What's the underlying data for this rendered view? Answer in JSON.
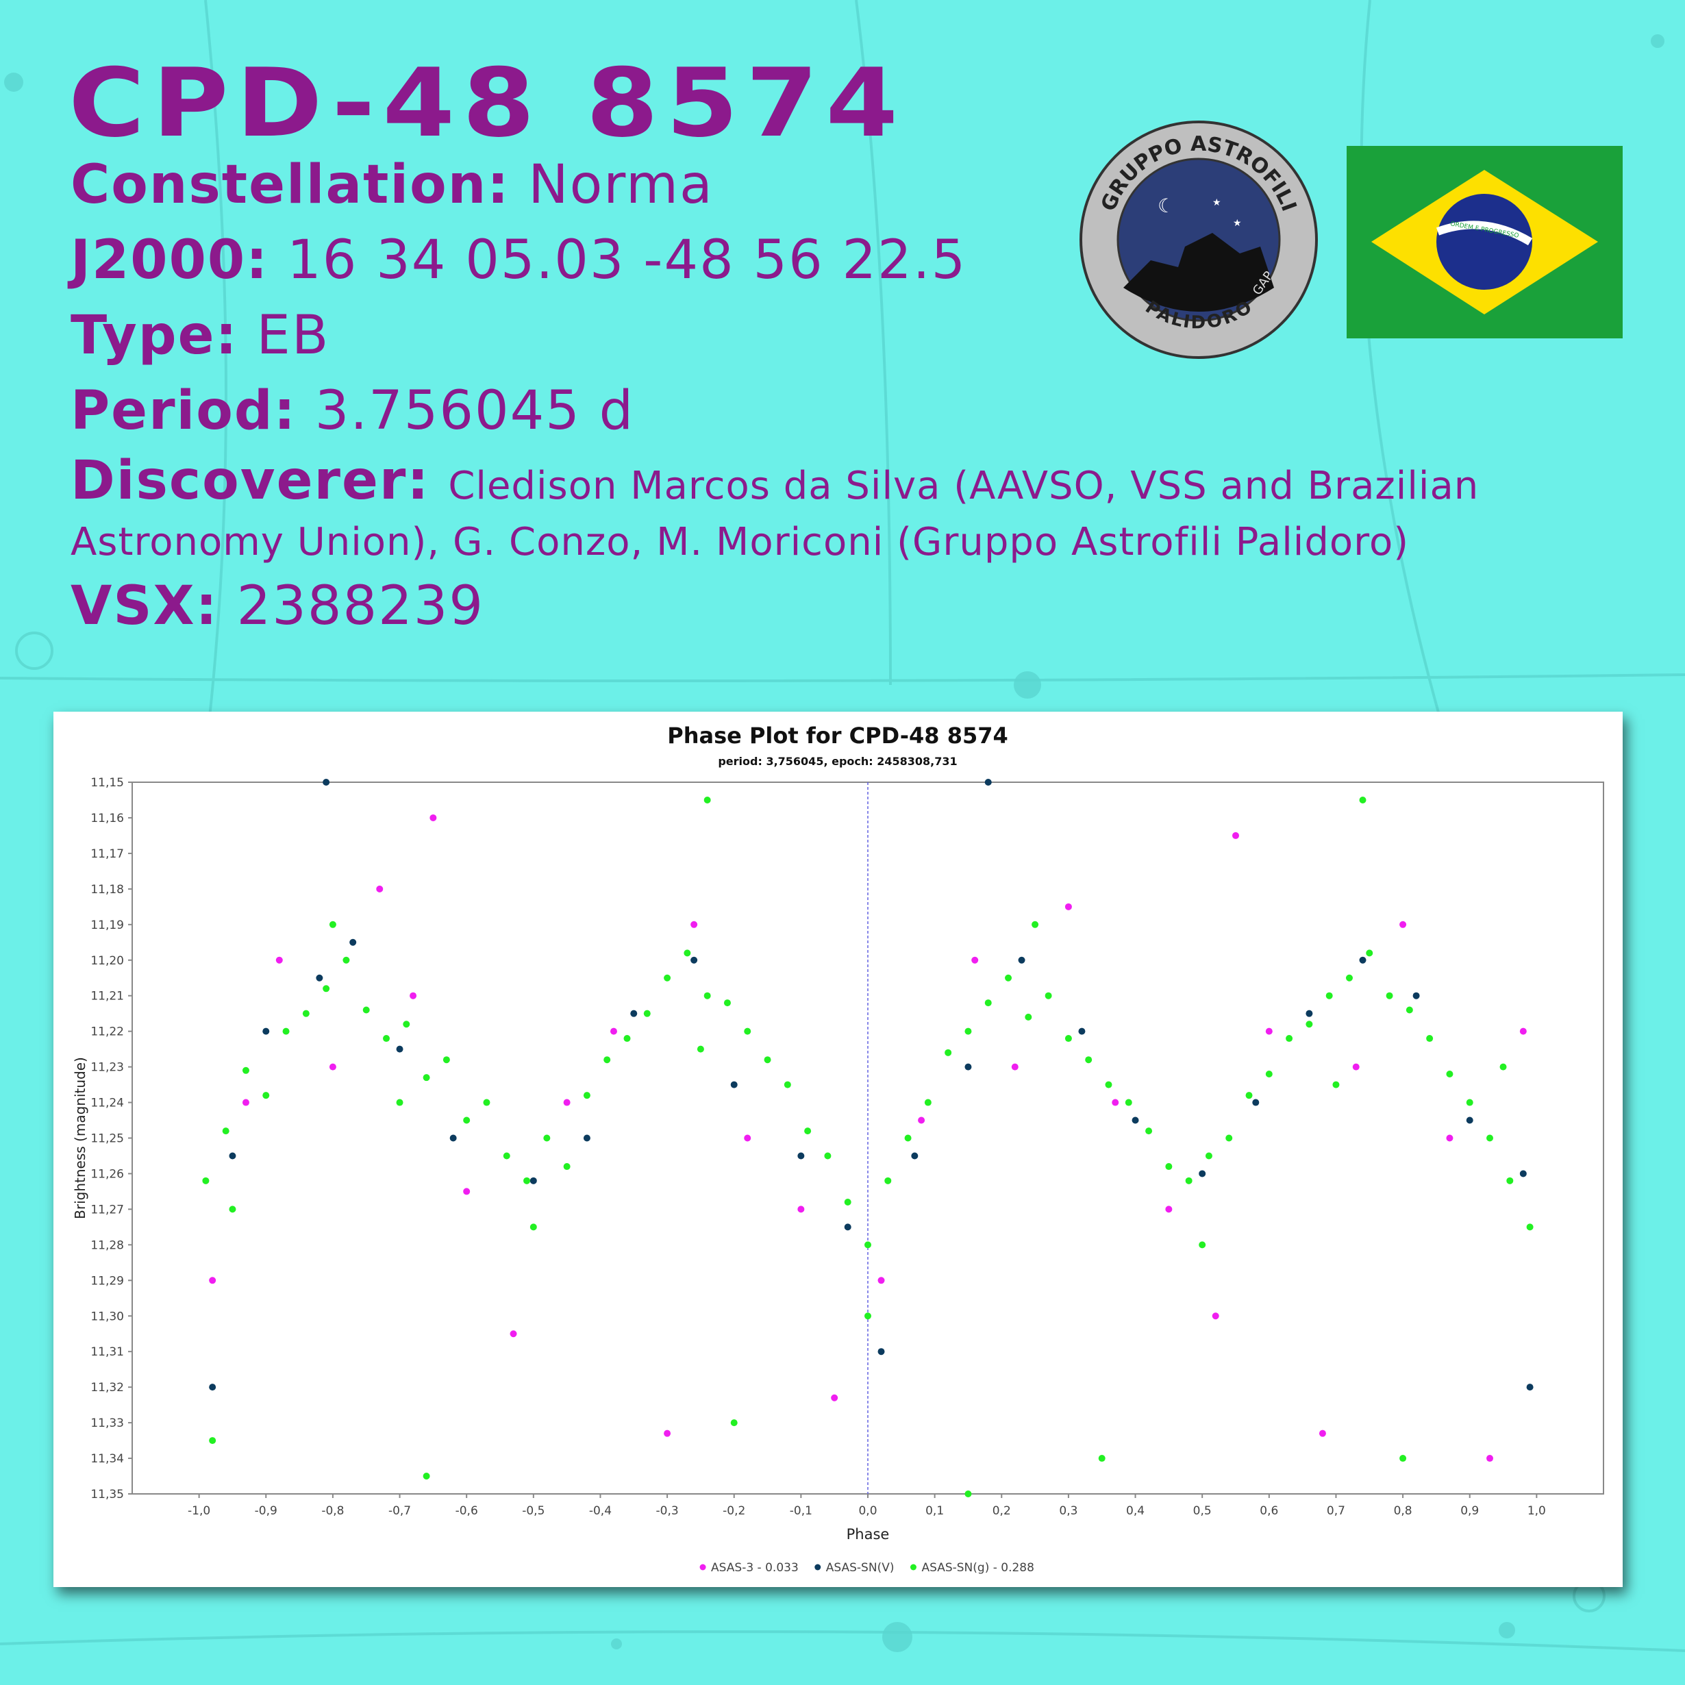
{
  "header": {
    "title": "CPD-48 8574",
    "fields": [
      {
        "label": "Constellation:",
        "value": "Norma"
      },
      {
        "label": "J2000:",
        "value": "16 34 05.03 -48 56 22.5"
      },
      {
        "label": "Type:",
        "value": "EB"
      },
      {
        "label": "Period:",
        "value": "3.756045 d"
      },
      {
        "label": "Discoverer:",
        "value": "Cledison Marcos da Silva (AAVSO, VSS and Brazilian Astronomy Union), G. Conzo, M. Moriconi (Gruppo Astrofili Palidoro)"
      },
      {
        "label": "VSX:",
        "value": "2388239"
      }
    ]
  },
  "logo": {
    "top_text": "GRUPPO ASTROFILI",
    "bottom_text": "PALIDORO",
    "side_text": "GAP"
  },
  "flag": {
    "motto": "ORDEM E PROGRESSO"
  },
  "chart_data": {
    "type": "scatter",
    "title": "Phase Plot for CPD-48 8574",
    "subtitle": "period: 3,756045, epoch: 2458308,731",
    "x_label": "Phase",
    "y_label": "Brightness (magnitude)",
    "xlim": [
      -1.1,
      1.1
    ],
    "ylim": [
      11.15,
      11.35
    ],
    "y_inverted": true,
    "grid": false,
    "legend": "bottom",
    "domain_marker": 0,
    "xticks": [
      {
        "value": -1.0,
        "label": "-1,0"
      },
      {
        "value": -0.9,
        "label": "-0,9"
      },
      {
        "value": -0.8,
        "label": "-0,8"
      },
      {
        "value": -0.7,
        "label": "-0,7"
      },
      {
        "value": -0.6,
        "label": "-0,6"
      },
      {
        "value": -0.5,
        "label": "-0,5"
      },
      {
        "value": -0.4,
        "label": "-0,4"
      },
      {
        "value": -0.3,
        "label": "-0,3"
      },
      {
        "value": -0.2,
        "label": "-0,2"
      },
      {
        "value": -0.1,
        "label": "-0,1"
      },
      {
        "value": 0.0,
        "label": "0,0"
      },
      {
        "value": 0.1,
        "label": "0,1"
      },
      {
        "value": 0.2,
        "label": "0,2"
      },
      {
        "value": 0.3,
        "label": "0,3"
      },
      {
        "value": 0.4,
        "label": "0,4"
      },
      {
        "value": 0.5,
        "label": "0,5"
      },
      {
        "value": 0.6,
        "label": "0,6"
      },
      {
        "value": 0.7,
        "label": "0,7"
      },
      {
        "value": 0.8,
        "label": "0,8"
      },
      {
        "value": 0.9,
        "label": "0,9"
      },
      {
        "value": 1.0,
        "label": "1,0"
      }
    ],
    "yticks": [
      {
        "value": 11.15,
        "label": "11,15"
      },
      {
        "value": 11.16,
        "label": "11,16"
      },
      {
        "value": 11.17,
        "label": "11,17"
      },
      {
        "value": 11.18,
        "label": "11,18"
      },
      {
        "value": 11.19,
        "label": "11,19"
      },
      {
        "value": 11.2,
        "label": "11,20"
      },
      {
        "value": 11.21,
        "label": "11,21"
      },
      {
        "value": 11.22,
        "label": "11,22"
      },
      {
        "value": 11.23,
        "label": "11,23"
      },
      {
        "value": 11.24,
        "label": "11,24"
      },
      {
        "value": 11.25,
        "label": "11,25"
      },
      {
        "value": 11.26,
        "label": "11,26"
      },
      {
        "value": 11.27,
        "label": "11,27"
      },
      {
        "value": 11.28,
        "label": "11,28"
      },
      {
        "value": 11.29,
        "label": "11,29"
      },
      {
        "value": 11.3,
        "label": "11,30"
      },
      {
        "value": 11.31,
        "label": "11,31"
      },
      {
        "value": 11.32,
        "label": "11,32"
      },
      {
        "value": 11.33,
        "label": "11,33"
      },
      {
        "value": 11.34,
        "label": "11,34"
      },
      {
        "value": 11.35,
        "label": "11,35"
      }
    ],
    "series": [
      {
        "name": "ASAS-3 - 0.033",
        "color": "#f01ef0",
        "x": [
          -0.98,
          -0.93,
          -0.88,
          -0.8,
          -0.73,
          -0.68,
          -0.6,
          -0.53,
          -0.45,
          -0.38,
          -0.3,
          -0.26,
          -0.18,
          -0.1,
          -0.05,
          0.02,
          0.08,
          0.16,
          0.22,
          0.3,
          0.37,
          0.45,
          0.52,
          0.6,
          0.68,
          0.73,
          0.8,
          0.87,
          0.93,
          0.98,
          -0.65,
          0.55
        ],
        "values": [
          11.29,
          11.24,
          11.2,
          11.23,
          11.18,
          11.21,
          11.265,
          11.305,
          11.24,
          11.22,
          11.333,
          11.19,
          11.25,
          11.27,
          11.323,
          11.29,
          11.245,
          11.2,
          11.23,
          11.185,
          11.24,
          11.27,
          11.3,
          11.22,
          11.333,
          11.23,
          11.19,
          11.25,
          11.34,
          11.22,
          11.16,
          11.165
        ]
      },
      {
        "name": "ASAS-SN(V)",
        "color": "#0c3b5e",
        "x": [
          -0.98,
          -0.95,
          -0.9,
          -0.82,
          -0.77,
          -0.7,
          -0.62,
          -0.5,
          -0.42,
          -0.35,
          -0.26,
          -0.2,
          -0.1,
          -0.03,
          0.02,
          0.07,
          0.15,
          0.23,
          0.32,
          0.4,
          0.5,
          0.58,
          0.66,
          0.74,
          0.82,
          0.9,
          0.98,
          0.99,
          -0.81,
          0.18
        ],
        "values": [
          11.32,
          11.255,
          11.22,
          11.205,
          11.195,
          11.225,
          11.25,
          11.262,
          11.25,
          11.215,
          11.2,
          11.235,
          11.255,
          11.275,
          11.31,
          11.255,
          11.23,
          11.2,
          11.22,
          11.245,
          11.26,
          11.24,
          11.215,
          11.2,
          11.21,
          11.245,
          11.26,
          11.32,
          11.15,
          11.15
        ]
      },
      {
        "name": "ASAS-SN(g) - 0.288",
        "color": "#22f022",
        "x": [
          -0.99,
          -0.96,
          -0.93,
          -0.9,
          -0.87,
          -0.84,
          -0.81,
          -0.78,
          -0.75,
          -0.72,
          -0.69,
          -0.66,
          -0.63,
          -0.6,
          -0.57,
          -0.54,
          -0.51,
          -0.48,
          -0.45,
          -0.42,
          -0.39,
          -0.36,
          -0.33,
          -0.3,
          -0.27,
          -0.24,
          -0.21,
          -0.18,
          -0.15,
          -0.12,
          -0.09,
          -0.06,
          -0.03,
          0.0,
          0.03,
          0.06,
          0.09,
          0.12,
          0.15,
          0.18,
          0.21,
          0.24,
          0.27,
          0.3,
          0.33,
          0.36,
          0.39,
          0.42,
          0.45,
          0.48,
          0.51,
          0.54,
          0.57,
          0.6,
          0.63,
          0.66,
          0.69,
          0.72,
          0.75,
          0.78,
          0.81,
          0.84,
          0.87,
          0.9,
          0.93,
          0.96,
          0.99,
          -0.98,
          -0.66,
          0.15,
          0.35,
          -0.2,
          0.8,
          -0.24,
          0.74,
          -0.8,
          -0.7,
          -0.5,
          -0.25,
          0.0,
          0.25,
          0.5,
          0.7,
          0.95,
          -0.95
        ],
        "values": [
          11.262,
          11.248,
          11.231,
          11.238,
          11.22,
          11.215,
          11.208,
          11.2,
          11.214,
          11.222,
          11.218,
          11.233,
          11.228,
          11.245,
          11.24,
          11.255,
          11.262,
          11.25,
          11.258,
          11.238,
          11.228,
          11.222,
          11.215,
          11.205,
          11.198,
          11.21,
          11.212,
          11.22,
          11.228,
          11.235,
          11.248,
          11.255,
          11.268,
          11.28,
          11.262,
          11.25,
          11.24,
          11.226,
          11.22,
          11.212,
          11.205,
          11.216,
          11.21,
          11.222,
          11.228,
          11.235,
          11.24,
          11.248,
          11.258,
          11.262,
          11.255,
          11.25,
          11.238,
          11.232,
          11.222,
          11.218,
          11.21,
          11.205,
          11.198,
          11.21,
          11.214,
          11.222,
          11.232,
          11.24,
          11.25,
          11.262,
          11.275,
          11.335,
          11.345,
          11.35,
          11.34,
          11.33,
          11.34,
          11.155,
          11.155,
          11.19,
          11.24,
          11.275,
          11.225,
          11.3,
          11.19,
          11.28,
          11.235,
          11.23,
          11.27
        ]
      }
    ]
  }
}
